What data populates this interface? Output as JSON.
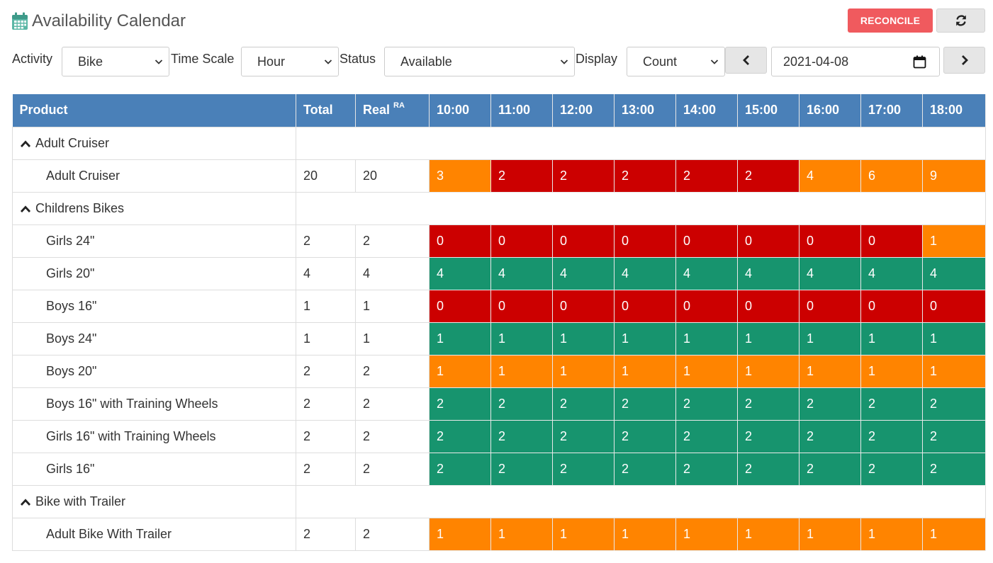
{
  "header": {
    "title": "Availability Calendar",
    "icon": "calendar-icon",
    "reconcile_label": "RECONCILE",
    "refresh_icon": "refresh-icon"
  },
  "filters": {
    "activity": {
      "label": "Activity",
      "value": "Bike"
    },
    "time_scale": {
      "label": "Time Scale",
      "value": "Hour"
    },
    "status": {
      "label": "Status",
      "value": "Available"
    },
    "display": {
      "label": "Display",
      "value": "Count"
    },
    "date": "2021-04-08",
    "prev_icon": "chevron-left-icon",
    "next_icon": "chevron-right-icon"
  },
  "colors": {
    "header_bg": "#4a80b8",
    "reconcile_bg": "#f05a5e",
    "red": "#cc0000",
    "orange": "#ff8400",
    "green": "#17946e"
  },
  "table": {
    "columns": {
      "product": "Product",
      "total": "Total",
      "real": "Real",
      "real_sup": "RA",
      "hours": [
        "10:00",
        "11:00",
        "12:00",
        "13:00",
        "14:00",
        "15:00",
        "16:00",
        "17:00",
        "18:00"
      ]
    },
    "groups": [
      {
        "name": "Adult Cruiser",
        "rows": [
          {
            "product": "Adult Cruiser",
            "total": "20",
            "real": "20",
            "values": [
              "3",
              "2",
              "2",
              "2",
              "2",
              "2",
              "4",
              "6",
              "9"
            ],
            "status": [
              "orange",
              "red",
              "red",
              "red",
              "red",
              "red",
              "orange",
              "orange",
              "orange"
            ]
          }
        ]
      },
      {
        "name": "Childrens Bikes",
        "rows": [
          {
            "product": "Girls 24\"",
            "total": "2",
            "real": "2",
            "values": [
              "0",
              "0",
              "0",
              "0",
              "0",
              "0",
              "0",
              "0",
              "1"
            ],
            "status": [
              "red",
              "red",
              "red",
              "red",
              "red",
              "red",
              "red",
              "red",
              "orange"
            ]
          },
          {
            "product": "Girls 20\"",
            "total": "4",
            "real": "4",
            "values": [
              "4",
              "4",
              "4",
              "4",
              "4",
              "4",
              "4",
              "4",
              "4"
            ],
            "status": [
              "green",
              "green",
              "green",
              "green",
              "green",
              "green",
              "green",
              "green",
              "green"
            ]
          },
          {
            "product": "Boys 16\"",
            "total": "1",
            "real": "1",
            "values": [
              "0",
              "0",
              "0",
              "0",
              "0",
              "0",
              "0",
              "0",
              "0"
            ],
            "status": [
              "red",
              "red",
              "red",
              "red",
              "red",
              "red",
              "red",
              "red",
              "red"
            ]
          },
          {
            "product": "Boys 24\"",
            "total": "1",
            "real": "1",
            "values": [
              "1",
              "1",
              "1",
              "1",
              "1",
              "1",
              "1",
              "1",
              "1"
            ],
            "status": [
              "green",
              "green",
              "green",
              "green",
              "green",
              "green",
              "green",
              "green",
              "green"
            ]
          },
          {
            "product": "Boys 20\"",
            "total": "2",
            "real": "2",
            "values": [
              "1",
              "1",
              "1",
              "1",
              "1",
              "1",
              "1",
              "1",
              "1"
            ],
            "status": [
              "orange",
              "orange",
              "orange",
              "orange",
              "orange",
              "orange",
              "orange",
              "orange",
              "orange"
            ]
          },
          {
            "product": "Boys 16\" with Training Wheels",
            "total": "2",
            "real": "2",
            "values": [
              "2",
              "2",
              "2",
              "2",
              "2",
              "2",
              "2",
              "2",
              "2"
            ],
            "status": [
              "green",
              "green",
              "green",
              "green",
              "green",
              "green",
              "green",
              "green",
              "green"
            ]
          },
          {
            "product": "Girls 16\" with Training Wheels",
            "total": "2",
            "real": "2",
            "values": [
              "2",
              "2",
              "2",
              "2",
              "2",
              "2",
              "2",
              "2",
              "2"
            ],
            "status": [
              "green",
              "green",
              "green",
              "green",
              "green",
              "green",
              "green",
              "green",
              "green"
            ]
          },
          {
            "product": "Girls 16\"",
            "total": "2",
            "real": "2",
            "values": [
              "2",
              "2",
              "2",
              "2",
              "2",
              "2",
              "2",
              "2",
              "2"
            ],
            "status": [
              "green",
              "green",
              "green",
              "green",
              "green",
              "green",
              "green",
              "green",
              "green"
            ]
          }
        ]
      },
      {
        "name": "Bike with Trailer",
        "rows": [
          {
            "product": "Adult Bike With Trailer",
            "total": "2",
            "real": "2",
            "values": [
              "1",
              "1",
              "1",
              "1",
              "1",
              "1",
              "1",
              "1",
              "1"
            ],
            "status": [
              "orange",
              "orange",
              "orange",
              "orange",
              "orange",
              "orange",
              "orange",
              "orange",
              "orange"
            ]
          }
        ]
      }
    ]
  }
}
